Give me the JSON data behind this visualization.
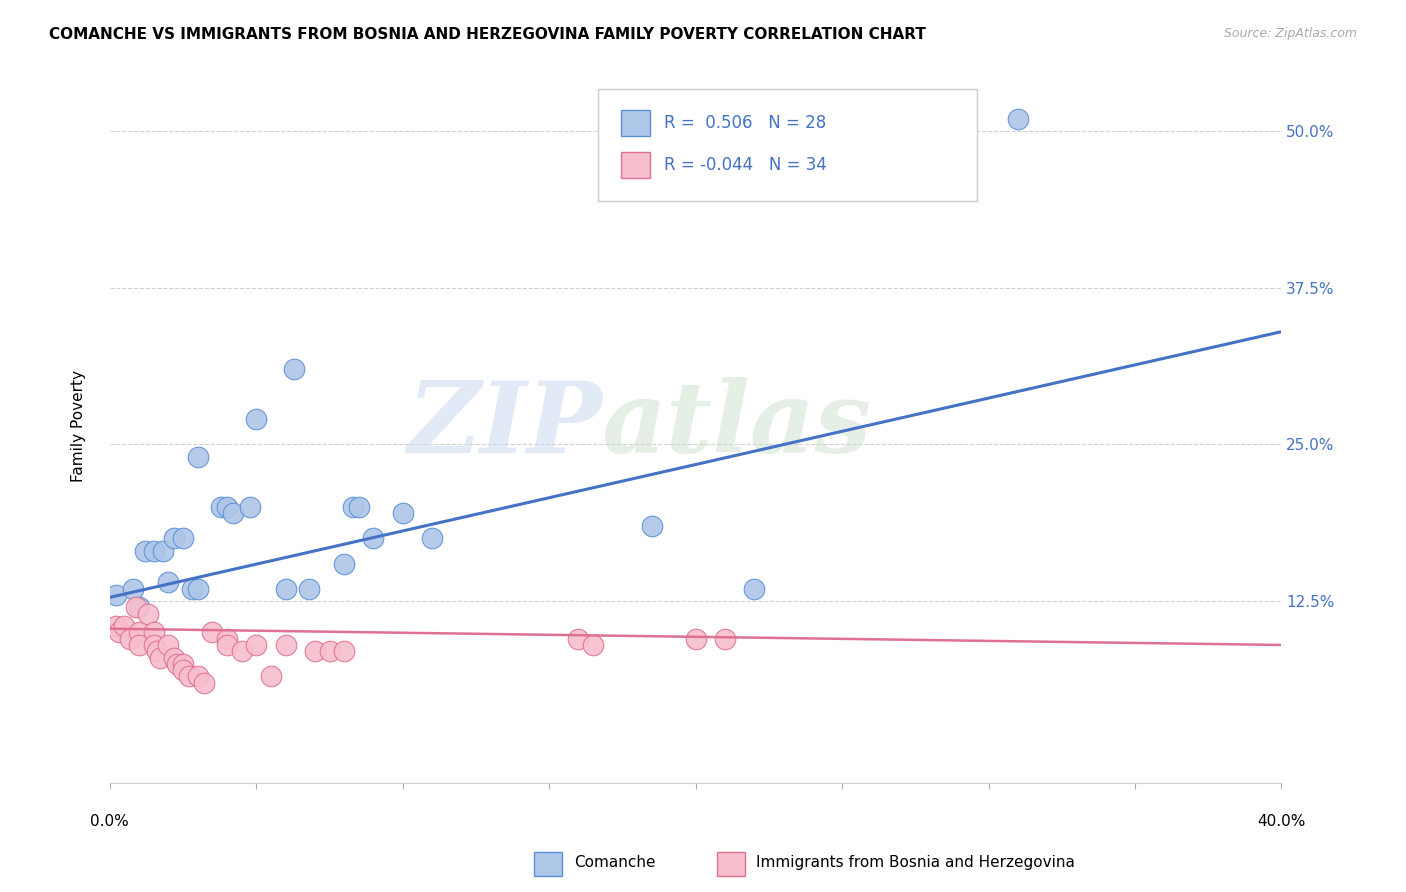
{
  "title": "COMANCHE VS IMMIGRANTS FROM BOSNIA AND HERZEGOVINA FAMILY POVERTY CORRELATION CHART",
  "source": "Source: ZipAtlas.com",
  "ylabel": "Family Poverty",
  "yticks": [
    "12.5%",
    "25.0%",
    "37.5%",
    "50.0%"
  ],
  "ytick_vals": [
    0.125,
    0.25,
    0.375,
    0.5
  ],
  "xlim": [
    0.0,
    0.4
  ],
  "ylim": [
    -0.02,
    0.55
  ],
  "comanche_color": "#aec6e8",
  "comanche_edge_color": "#5b8fd4",
  "bosnia_color": "#f7bece",
  "bosnia_edge_color": "#e07090",
  "trend_blue": "#4472c4",
  "trend_pink": "#e07090",
  "comanche_scatter": [
    [
      0.002,
      0.13
    ],
    [
      0.008,
      0.135
    ],
    [
      0.01,
      0.12
    ],
    [
      0.012,
      0.165
    ],
    [
      0.015,
      0.165
    ],
    [
      0.018,
      0.165
    ],
    [
      0.02,
      0.14
    ],
    [
      0.022,
      0.175
    ],
    [
      0.025,
      0.175
    ],
    [
      0.028,
      0.135
    ],
    [
      0.03,
      0.135
    ],
    [
      0.03,
      0.24
    ],
    [
      0.038,
      0.2
    ],
    [
      0.04,
      0.2
    ],
    [
      0.042,
      0.195
    ],
    [
      0.048,
      0.2
    ],
    [
      0.05,
      0.27
    ],
    [
      0.06,
      0.135
    ],
    [
      0.063,
      0.31
    ],
    [
      0.068,
      0.135
    ],
    [
      0.08,
      0.155
    ],
    [
      0.083,
      0.2
    ],
    [
      0.085,
      0.2
    ],
    [
      0.09,
      0.175
    ],
    [
      0.1,
      0.195
    ],
    [
      0.11,
      0.175
    ],
    [
      0.185,
      0.185
    ],
    [
      0.22,
      0.135
    ],
    [
      0.31,
      0.51
    ]
  ],
  "bosnia_scatter": [
    [
      0.002,
      0.105
    ],
    [
      0.003,
      0.1
    ],
    [
      0.005,
      0.105
    ],
    [
      0.007,
      0.095
    ],
    [
      0.009,
      0.12
    ],
    [
      0.01,
      0.1
    ],
    [
      0.01,
      0.09
    ],
    [
      0.013,
      0.115
    ],
    [
      0.015,
      0.1
    ],
    [
      0.015,
      0.09
    ],
    [
      0.016,
      0.085
    ],
    [
      0.017,
      0.08
    ],
    [
      0.02,
      0.09
    ],
    [
      0.022,
      0.08
    ],
    [
      0.023,
      0.075
    ],
    [
      0.025,
      0.075
    ],
    [
      0.025,
      0.07
    ],
    [
      0.027,
      0.065
    ],
    [
      0.03,
      0.065
    ],
    [
      0.032,
      0.06
    ],
    [
      0.035,
      0.1
    ],
    [
      0.04,
      0.095
    ],
    [
      0.04,
      0.09
    ],
    [
      0.045,
      0.085
    ],
    [
      0.05,
      0.09
    ],
    [
      0.055,
      0.065
    ],
    [
      0.06,
      0.09
    ],
    [
      0.07,
      0.085
    ],
    [
      0.075,
      0.085
    ],
    [
      0.08,
      0.085
    ],
    [
      0.16,
      0.095
    ],
    [
      0.165,
      0.09
    ],
    [
      0.2,
      0.095
    ],
    [
      0.21,
      0.095
    ]
  ],
  "comanche_trendline": [
    [
      0.0,
      0.128
    ],
    [
      0.4,
      0.34
    ]
  ],
  "bosnia_trendline": [
    [
      0.0,
      0.103
    ],
    [
      0.4,
      0.09
    ]
  ]
}
